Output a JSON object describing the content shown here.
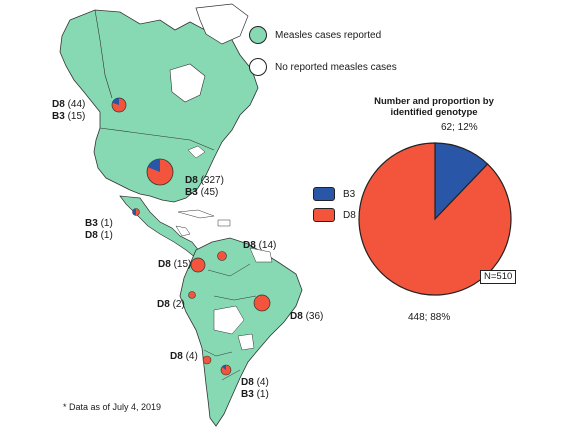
{
  "legend": {
    "reported": "Measles cases reported",
    "not_reported": "No reported measles cases",
    "reported_color": "#86d9b3",
    "not_reported_color": "#ffffff"
  },
  "regions": [
    {
      "name": "Canada",
      "entries": [
        {
          "genotype": "D8",
          "count": "(44)"
        },
        {
          "genotype": "B3",
          "count": "(15)"
        }
      ]
    },
    {
      "name": "USA",
      "entries": [
        {
          "genotype": "D8",
          "count": "(327)"
        },
        {
          "genotype": "B3",
          "count": "(45)"
        }
      ]
    },
    {
      "name": "Mexico",
      "entries": [
        {
          "genotype": "B3",
          "count": "(1)"
        },
        {
          "genotype": "D8",
          "count": "(1)"
        }
      ]
    },
    {
      "name": "Venezuela",
      "entries": [
        {
          "genotype": "D8",
          "count": "(14)"
        }
      ]
    },
    {
      "name": "Colombia",
      "entries": [
        {
          "genotype": "D8",
          "count": "(15)"
        }
      ]
    },
    {
      "name": "Peru",
      "entries": [
        {
          "genotype": "D8",
          "count": "(2)"
        }
      ]
    },
    {
      "name": "Brazil",
      "entries": [
        {
          "genotype": "D8",
          "count": "(36)"
        }
      ]
    },
    {
      "name": "Chile",
      "entries": [
        {
          "genotype": "D8",
          "count": "(4)"
        }
      ]
    },
    {
      "name": "Argentina",
      "entries": [
        {
          "genotype": "D8",
          "count": "(4)"
        },
        {
          "genotype": "B3",
          "count": "(1)"
        }
      ]
    }
  ],
  "footnote": "* Data as of July 4, 2019",
  "chart_data": {
    "type": "pie",
    "title": "Number and proportion by identified genotype",
    "series": [
      {
        "name": "B3",
        "value": 62,
        "percent": 12,
        "label": "62; 12%",
        "color": "#2a56a8"
      },
      {
        "name": "D8",
        "value": 448,
        "percent": 88,
        "label": "448; 88%",
        "color": "#f2553c"
      }
    ],
    "total_label": "N=510",
    "legend_placement": "left"
  },
  "colors": {
    "land": "#86d9b3",
    "border": "#333333",
    "b3": "#2a56a8",
    "d8": "#f2553c"
  }
}
